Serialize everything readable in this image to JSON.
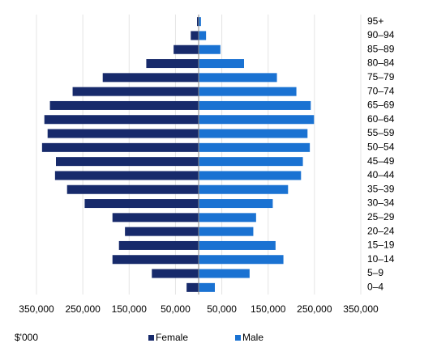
{
  "chart_data": {
    "type": "pyramid",
    "y_label": "$'000",
    "categories": [
      "95+",
      "90–94",
      "85–89",
      "80–84",
      "75–79",
      "70–74",
      "65–69",
      "60–64",
      "55–59",
      "50–54",
      "45–49",
      "40–44",
      "35–39",
      "30–34",
      "25–29",
      "20–24",
      "15–19",
      "10–14",
      "5–9",
      "0–4"
    ],
    "series": [
      {
        "name": "Female",
        "color": "#172a6b",
        "values": [
          -3500,
          -17000,
          -54000,
          -113000,
          -207000,
          -272000,
          -321000,
          -333000,
          -326000,
          -338000,
          -308000,
          -310000,
          -284000,
          -246000,
          -186000,
          -159000,
          -172000,
          -186000,
          -101000,
          -26000
        ]
      },
      {
        "name": "Male",
        "color": "#1a72d2",
        "values": [
          5000,
          16000,
          47000,
          98000,
          169000,
          211000,
          242000,
          249000,
          235000,
          240000,
          225000,
          221000,
          193000,
          160000,
          124000,
          118000,
          166000,
          183000,
          110000,
          35000
        ]
      }
    ],
    "xlim": [
      -350000,
      350000
    ],
    "xticks": [
      {
        "value": -350000,
        "label": "350,000"
      },
      {
        "value": -250000,
        "label": "250,000"
      },
      {
        "value": -150000,
        "label": "150,000"
      },
      {
        "value": -50000,
        "label": "50,000"
      },
      {
        "value": 50000,
        "label": "50,000"
      },
      {
        "value": 150000,
        "label": "150,000"
      },
      {
        "value": 250000,
        "label": "250,000"
      },
      {
        "value": 350000,
        "label": "350,000"
      }
    ],
    "grid": true
  }
}
